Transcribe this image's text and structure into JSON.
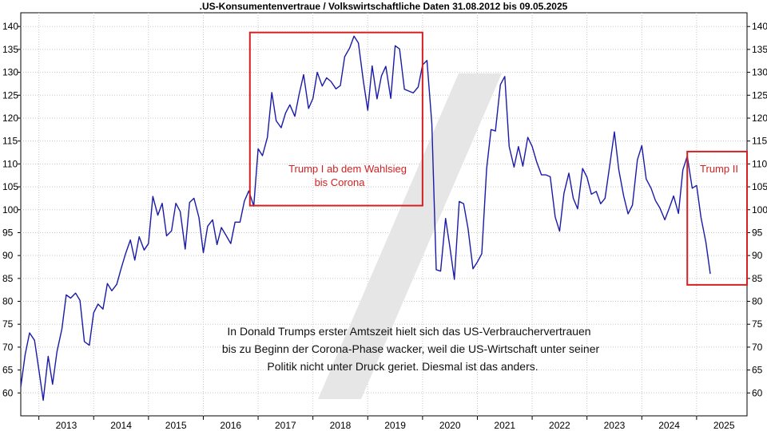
{
  "chart_data": {
    "type": "line",
    "title": ".US-Konsumentenvertraue / Volkswirtschaftliche Daten 31.08.2012 bis 09.05.2025",
    "xlabel": "",
    "ylabel": "",
    "xlim": [
      2012.67,
      2025.92
    ],
    "ylim": [
      55,
      143
    ],
    "yticks": [
      60,
      65,
      70,
      75,
      80,
      85,
      90,
      95,
      100,
      105,
      110,
      115,
      120,
      125,
      130,
      135,
      140
    ],
    "xticks": [
      "2013",
      "2014",
      "2015",
      "2016",
      "2017",
      "2018",
      "2019",
      "2020",
      "2021",
      "2022",
      "2023",
      "2024",
      "2025"
    ],
    "grid": true,
    "legend": "none",
    "line_color": "#1a1aa8",
    "series": [
      {
        "x": [
          2012.67,
          2012.75,
          2012.83,
          2012.92,
          2013.0,
          2013.08,
          2013.17,
          2013.25,
          2013.33,
          2013.42,
          2013.5,
          2013.58,
          2013.67,
          2013.75,
          2013.83,
          2013.92,
          2014.0,
          2014.08,
          2014.17,
          2014.25,
          2014.33,
          2014.42,
          2014.5,
          2014.58,
          2014.67,
          2014.75,
          2014.83,
          2014.92,
          2015.0,
          2015.08,
          2015.17,
          2015.25,
          2015.33,
          2015.42,
          2015.5,
          2015.58,
          2015.67,
          2015.75,
          2015.83,
          2015.92,
          2016.0,
          2016.08,
          2016.17,
          2016.25,
          2016.33,
          2016.42,
          2016.5,
          2016.58,
          2016.67,
          2016.75,
          2016.83,
          2016.92,
          2017.0,
          2017.08,
          2017.17,
          2017.25,
          2017.33,
          2017.42,
          2017.5,
          2017.58,
          2017.67,
          2017.75,
          2017.83,
          2017.92,
          2018.0,
          2018.08,
          2018.17,
          2018.25,
          2018.33,
          2018.42,
          2018.5,
          2018.58,
          2018.67,
          2018.75,
          2018.83,
          2018.92,
          2019.0,
          2019.08,
          2019.17,
          2019.25,
          2019.33,
          2019.42,
          2019.5,
          2019.58,
          2019.67,
          2019.75,
          2019.83,
          2019.92,
          2020.0,
          2020.08,
          2020.17,
          2020.25,
          2020.33,
          2020.42,
          2020.5,
          2020.58,
          2020.67,
          2020.75,
          2020.83,
          2020.92,
          2021.0,
          2021.08,
          2021.17,
          2021.25,
          2021.33,
          2021.42,
          2021.5,
          2021.58,
          2021.67,
          2021.75,
          2021.83,
          2021.92,
          2022.0,
          2022.08,
          2022.17,
          2022.25,
          2022.33,
          2022.42,
          2022.5,
          2022.58,
          2022.67,
          2022.75,
          2022.83,
          2022.92,
          2023.0,
          2023.08,
          2023.17,
          2023.25,
          2023.33,
          2023.42,
          2023.5,
          2023.58,
          2023.67,
          2023.75,
          2023.83,
          2023.92,
          2024.0,
          2024.08,
          2024.17,
          2024.25,
          2024.33,
          2024.42,
          2024.5,
          2024.58,
          2024.67,
          2024.75,
          2024.83,
          2024.92,
          2025.0,
          2025.08,
          2025.17,
          2025.25
        ],
        "y": [
          61.3,
          68.4,
          73.1,
          71.5,
          65.1,
          58.4,
          68.0,
          61.9,
          69.0,
          74.0,
          81.4,
          80.7,
          81.8,
          80.2,
          71.2,
          70.4,
          77.5,
          79.4,
          78.3,
          83.9,
          82.3,
          83.7,
          87.1,
          90.3,
          93.4,
          89.0,
          94.1,
          91.2,
          92.6,
          102.9,
          98.8,
          101.4,
          94.3,
          95.4,
          101.4,
          99.6,
          91.4,
          101.6,
          102.5,
          98.3,
          90.6,
          96.4,
          97.8,
          92.4,
          96.1,
          94.3,
          92.6,
          97.3,
          97.3,
          101.9,
          104.1,
          100.8,
          113.3,
          111.8,
          115.8,
          125.6,
          119.4,
          117.9,
          121.1,
          122.9,
          120.4,
          125.3,
          129.5,
          122.1,
          124.3,
          130.0,
          127.0,
          128.8,
          128.0,
          126.4,
          127.1,
          133.4,
          135.3,
          137.9,
          136.4,
          128.1,
          121.7,
          131.4,
          124.2,
          129.2,
          131.3,
          124.3,
          135.8,
          135.1,
          126.3,
          125.9,
          125.5,
          126.8,
          131.6,
          132.6,
          118.8,
          86.9,
          86.6,
          98.1,
          91.7,
          84.8,
          101.8,
          101.3,
          95.9,
          87.1,
          88.6,
          90.4,
          109.0,
          117.5,
          117.2,
          127.3,
          129.1,
          113.8,
          109.3,
          113.8,
          109.5,
          115.8,
          113.8,
          110.5,
          107.6,
          107.6,
          107.2,
          98.4,
          95.3,
          103.6,
          108.0,
          102.5,
          100.2,
          109.0,
          107.1,
          103.4,
          104.0,
          101.3,
          102.5,
          110.1,
          117.0,
          108.7,
          103.0,
          99.1,
          101.0,
          110.9,
          114.0,
          106.7,
          104.7,
          102.0,
          100.4,
          97.8,
          100.3,
          103.0,
          99.2,
          108.7,
          111.7,
          104.7,
          105.3,
          98.3,
          92.9,
          86.0
        ]
      }
    ],
    "annotations": {
      "trump1_line1": "Trump I ab dem Wahlsieg",
      "trump1_line2": "bis Corona",
      "trump2": "Trump II",
      "trump1_box": {
        "x_from": 2016.85,
        "x_to": 2020.0,
        "y_from": 100.9,
        "y_to": 138.7
      },
      "trump2_box": {
        "x_from": 2024.83,
        "x_to": 2025.92,
        "y_from": 83.6,
        "y_to": 112.7
      },
      "box_color": "#d42020",
      "note_lines": [
        "In Donald Trumps erster Amtszeit hielt sich das US-Verbrauchervertrauen",
        "bis zu Beginn der Corona-Phase wacker, weil die US-Wirtschaft unter seiner",
        "Politik nicht unter Druck geriet. Diesmal ist das anders."
      ]
    }
  }
}
